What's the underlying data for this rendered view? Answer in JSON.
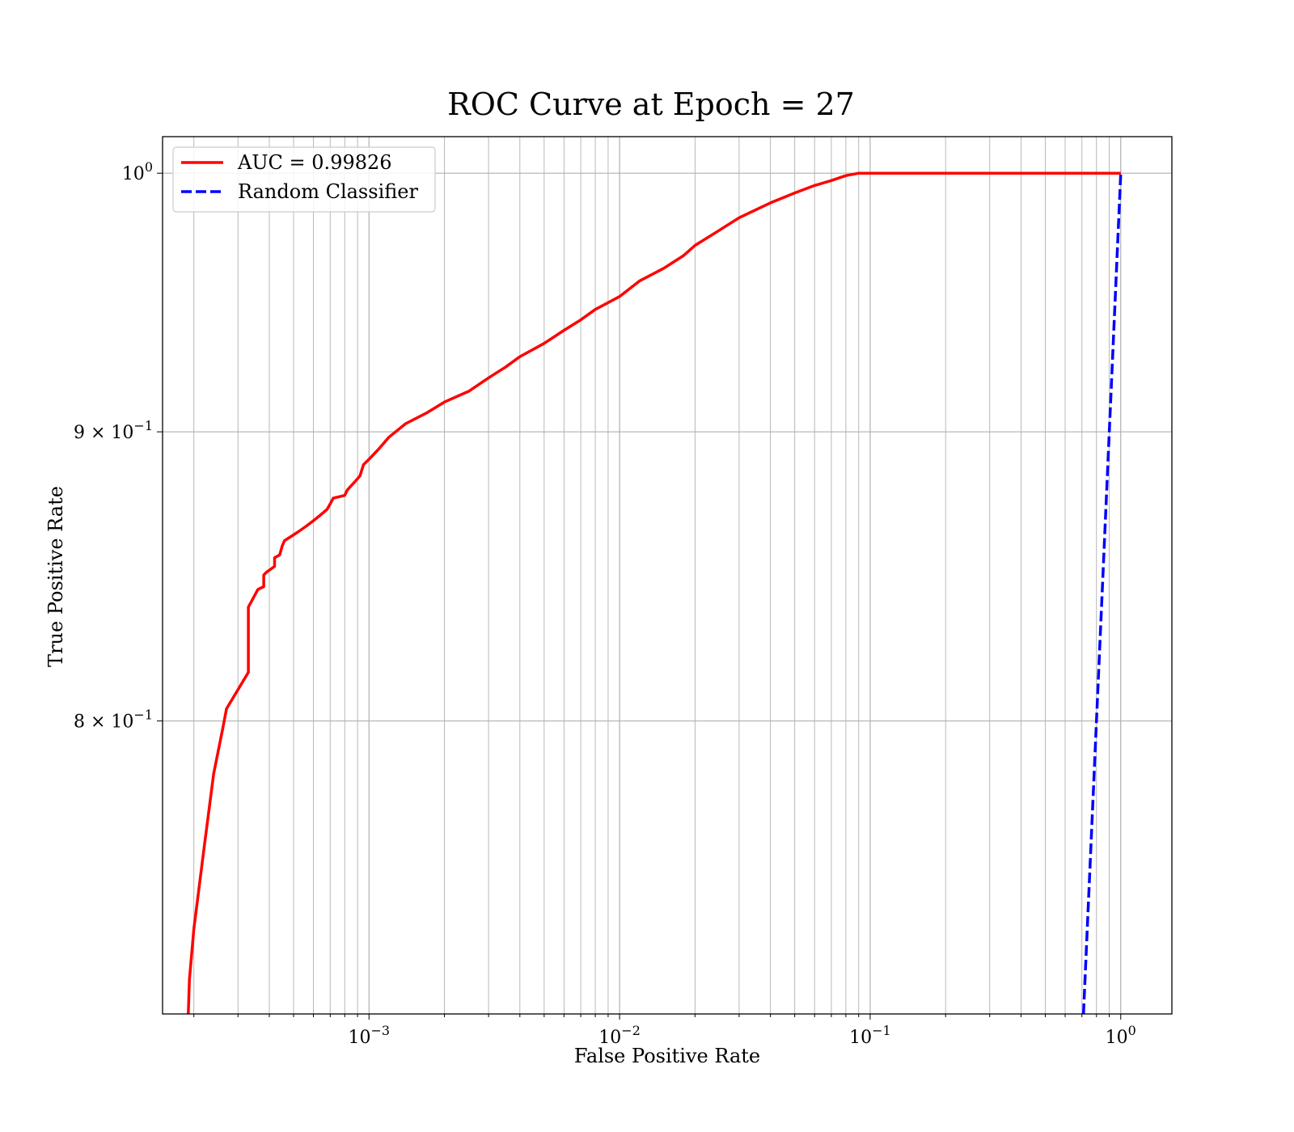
{
  "chart_data": {
    "type": "line",
    "title": "ROC Curve at Epoch = 27",
    "xlabel": "False Positive Rate",
    "ylabel": "True Positive Rate",
    "xscale": "log",
    "yscale": "log",
    "xlim": [
      0.00015,
      1.6
    ],
    "ylim": [
      0.71,
      1.015
    ],
    "grid": true,
    "legend_position": "top-left",
    "x_ticks": [
      {
        "value": 0.001,
        "base": "10",
        "exp": "−3"
      },
      {
        "value": 0.01,
        "base": "10",
        "exp": "−2"
      },
      {
        "value": 0.1,
        "base": "10",
        "exp": "−1"
      },
      {
        "value": 1,
        "base": "10",
        "exp": "0"
      }
    ],
    "y_ticks": [
      {
        "value": 1.0,
        "mant": "",
        "base": "10",
        "exp": "0"
      },
      {
        "value": 0.9,
        "mant": "9 × ",
        "base": "10",
        "exp": "−1"
      },
      {
        "value": 0.8,
        "mant": "8 × ",
        "base": "10",
        "exp": "−1"
      }
    ],
    "series": [
      {
        "name": "AUC = 0.99826",
        "color": "#ff0000",
        "style": "solid",
        "x": [
          0.00019,
          0.000192,
          0.0002,
          0.00022,
          0.00024,
          0.00026,
          0.00027,
          0.00033,
          0.00033,
          0.00034,
          0.00036,
          0.00038,
          0.00038,
          0.00039,
          0.00042,
          0.00042,
          0.00044,
          0.00045,
          0.00046,
          0.00048,
          0.00052,
          0.00056,
          0.0006,
          0.00064,
          0.00068,
          0.0007,
          0.00072,
          0.0008,
          0.00082,
          0.00088,
          0.0009,
          0.00092,
          0.00095,
          0.001,
          0.0011,
          0.0012,
          0.0014,
          0.0017,
          0.002,
          0.0025,
          0.003,
          0.0035,
          0.004,
          0.005,
          0.006,
          0.007,
          0.008,
          0.01,
          0.012,
          0.015,
          0.018,
          0.02,
          0.025,
          0.03,
          0.04,
          0.05,
          0.06,
          0.07,
          0.08,
          0.09,
          0.1,
          0.11,
          0.12,
          0.2,
          0.5,
          1.0
        ],
        "y": [
          0.71,
          0.72,
          0.735,
          0.76,
          0.783,
          0.797,
          0.804,
          0.816,
          0.838,
          0.84,
          0.844,
          0.845,
          0.849,
          0.85,
          0.852,
          0.855,
          0.856,
          0.859,
          0.861,
          0.862,
          0.864,
          0.866,
          0.868,
          0.87,
          0.872,
          0.874,
          0.876,
          0.877,
          0.879,
          0.882,
          0.883,
          0.884,
          0.888,
          0.89,
          0.894,
          0.898,
          0.903,
          0.907,
          0.911,
          0.915,
          0.92,
          0.924,
          0.928,
          0.933,
          0.938,
          0.942,
          0.946,
          0.951,
          0.957,
          0.962,
          0.967,
          0.971,
          0.977,
          0.982,
          0.988,
          0.992,
          0.995,
          0.997,
          0.999,
          1.0,
          1.0,
          1.0,
          1.0,
          1.0,
          1.0,
          1.0
        ]
      },
      {
        "name": "Random Classifier",
        "color": "#0000ff",
        "style": "dashed",
        "x": [
          0.71,
          1.0
        ],
        "y": [
          0.71,
          1.0
        ]
      }
    ]
  }
}
